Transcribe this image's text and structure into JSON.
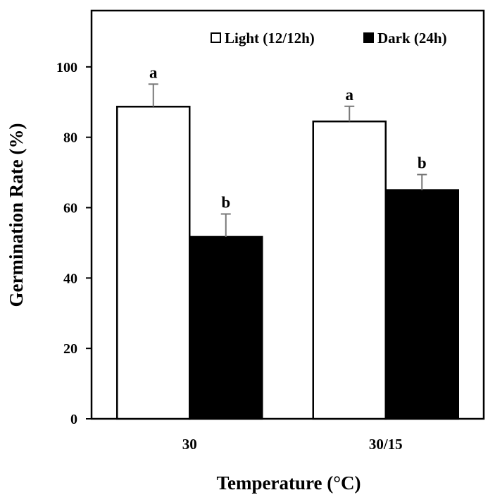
{
  "chart_data": {
    "type": "bar",
    "title": "",
    "xlabel": "Temperature (°C)",
    "ylabel": "Germination Rate (%)",
    "ylim": [
      0,
      116
    ],
    "yticks": [
      "0",
      "20",
      "40",
      "60",
      "80",
      "100"
    ],
    "categories": [
      "30",
      "30/15"
    ],
    "series": [
      {
        "name": "Light (12/12h)",
        "fill": "#ffffff",
        "values": [
          88.7,
          84.5
        ],
        "errors": [
          6.4,
          4.3
        ],
        "labels": [
          "a",
          "a"
        ]
      },
      {
        "name": "Dark (24h)",
        "fill": "#000000",
        "values": [
          51.7,
          65.0
        ],
        "errors": [
          6.5,
          4.4
        ],
        "labels": [
          "b",
          "b"
        ]
      }
    ],
    "grid": false,
    "legend_position": "top-right"
  }
}
